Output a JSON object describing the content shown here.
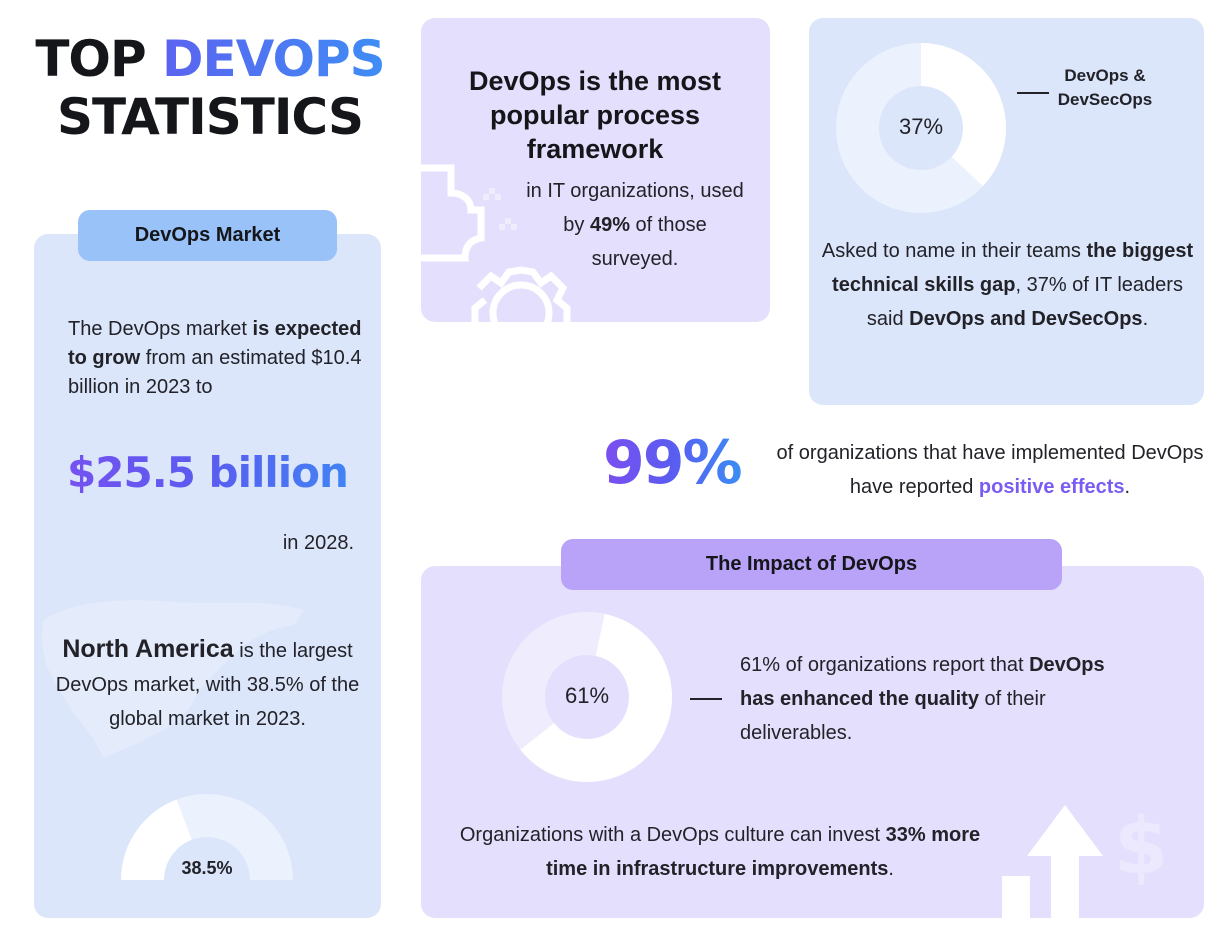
{
  "title": {
    "line1_plain": "TOP",
    "line1_accent": "DEVOPS",
    "line2": "STATISTICS"
  },
  "colors": {
    "blue_card": "#dbe6fb",
    "blue_pill": "#99c2f8",
    "purple_card": "#e4dffd",
    "purple_pill": "#b9a3f9",
    "accent_purple": "#7b5cf3",
    "accent_blue": "#3f8df5"
  },
  "market": {
    "pill_label": "DevOps Market",
    "intro_plain_1": "The DevOps market ",
    "intro_bold": "is expected to grow",
    "intro_plain_2": " from an estimated $10.4 billion in 2023 to",
    "big_value": "$25.5 billion",
    "year_text": "in 2028.",
    "na_bold": "North America",
    "na_plain": " is the largest DevOps market, with 38.5% of the global market in 2023.",
    "gauge_label": "38.5%",
    "gauge_value_pct": 38.5,
    "map_icon": "north-america-map"
  },
  "framework": {
    "headline": "DevOps is the most popular process framework",
    "sub_plain_1": "in IT organizations, used by ",
    "sub_bold": "49%",
    "sub_plain_2": " of those surveyed.",
    "decor_icon": "gear-icon"
  },
  "skills": {
    "donut_label": "37%",
    "donut_value_pct": 37,
    "legend": "DevOps & DevSecOps",
    "text_plain_1": "Asked to name in their teams ",
    "text_bold_1": "the biggest technical skills gap",
    "text_plain_2": ", 37% of IT leaders said ",
    "text_bold_2": "DevOps and DevSecOps",
    "text_plain_3": "."
  },
  "positive": {
    "big_value": "99%",
    "text_plain": "of organizations that have implemented DevOps have reported ",
    "text_highlight": "positive effects",
    "text_end": "."
  },
  "impact": {
    "pill_label": "The Impact of DevOps",
    "donut_label": "61%",
    "donut_value_pct": 61,
    "quality_plain_1": "61% of organizations report that ",
    "quality_bold": "DevOps has enhanced the quality",
    "quality_plain_2": " of their deliverables.",
    "infra_plain": "Organizations with a DevOps culture can invest ",
    "infra_bold": "33% more time in infrastructure improvements",
    "infra_end": ".",
    "decor_icons": [
      "arrow-up-icon",
      "dollar-icon"
    ]
  }
}
